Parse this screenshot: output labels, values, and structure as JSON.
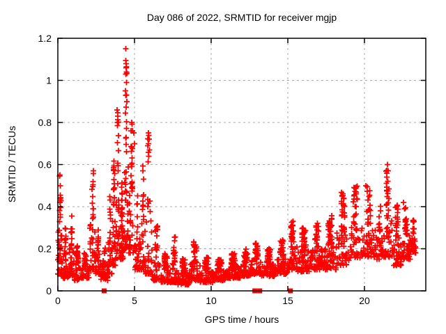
{
  "chart_data": {
    "type": "scatter",
    "title": "Day 086 of 2022, SRMTID for receiver mgjp",
    "xlabel": "GPS time / hours",
    "ylabel": "SRMTID / TECUs",
    "xlim": [
      0,
      24
    ],
    "ylim": [
      0,
      1.2
    ],
    "xticks": [
      0,
      5,
      10,
      15,
      20
    ],
    "xtick_labels": [
      "0",
      "5",
      "10",
      "15",
      "20"
    ],
    "yticks": [
      0,
      0.2,
      0.4,
      0.6,
      0.8,
      1,
      1.2
    ],
    "ytick_labels": [
      "0",
      "0.2",
      "0.4",
      "0.6",
      "0.8",
      "1",
      "1.2"
    ],
    "grid": {
      "show": true,
      "color": "#a8a8a8",
      "dash": "3 4",
      "x_at": [
        5,
        10,
        15,
        20
      ],
      "y_at": [
        0.2,
        0.4,
        0.6,
        0.8,
        1.0
      ]
    },
    "marker": {
      "type": "plus",
      "color": "#ff0000",
      "arm": 4,
      "stroke_width": 1.8
    },
    "border_color": "#000000",
    "background": "#ffffff",
    "seed": 42,
    "series": [
      {
        "name": "srmtid",
        "style": "plus",
        "envelope_bins": [
          [
            0.0,
            0.3,
            50,
            0.08,
            0.55,
            2.6
          ],
          [
            0.3,
            0.7,
            40,
            0.06,
            0.3,
            2.0
          ],
          [
            0.7,
            1.05,
            35,
            0.07,
            0.36,
            2.0
          ],
          [
            1.05,
            1.5,
            45,
            0.05,
            0.22,
            1.8
          ],
          [
            1.5,
            2.1,
            55,
            0.06,
            0.18,
            1.5
          ],
          [
            2.1,
            2.45,
            40,
            0.1,
            0.58,
            2.4
          ],
          [
            2.45,
            2.8,
            35,
            0.08,
            0.3,
            2.0
          ],
          [
            2.8,
            3.25,
            40,
            0.05,
            0.22,
            1.8
          ],
          [
            3.25,
            3.55,
            30,
            0.08,
            0.45,
            2.2
          ],
          [
            3.55,
            3.8,
            40,
            0.12,
            0.62,
            1.9
          ],
          [
            3.8,
            4.05,
            35,
            0.15,
            0.88,
            2.2
          ],
          [
            4.05,
            4.3,
            40,
            0.15,
            0.52,
            1.8
          ],
          [
            4.3,
            4.6,
            45,
            0.2,
            1.1,
            1.9
          ],
          [
            4.6,
            5.0,
            45,
            0.18,
            0.8,
            2.1
          ],
          [
            5.0,
            5.4,
            35,
            0.1,
            0.47,
            2.0
          ],
          [
            5.4,
            5.7,
            30,
            0.1,
            0.6,
            2.2
          ],
          [
            5.7,
            6.15,
            35,
            0.08,
            0.74,
            2.4
          ],
          [
            6.15,
            6.7,
            45,
            0.05,
            0.33,
            2.2
          ],
          [
            6.7,
            7.4,
            55,
            0.04,
            0.18,
            1.8
          ],
          [
            7.4,
            7.8,
            40,
            0.04,
            0.26,
            2.0
          ],
          [
            7.8,
            8.6,
            65,
            0.03,
            0.16,
            1.7
          ],
          [
            8.6,
            9.3,
            60,
            0.05,
            0.24,
            1.8
          ],
          [
            9.3,
            10.1,
            70,
            0.04,
            0.16,
            1.7
          ],
          [
            10.1,
            11.0,
            80,
            0.05,
            0.15,
            1.6
          ],
          [
            11.0,
            11.9,
            80,
            0.06,
            0.18,
            1.6
          ],
          [
            11.9,
            12.6,
            65,
            0.07,
            0.2,
            1.6
          ],
          [
            12.6,
            13.3,
            60,
            0.08,
            0.23,
            1.7
          ],
          [
            13.3,
            14.2,
            80,
            0.07,
            0.2,
            1.6
          ],
          [
            14.2,
            15.0,
            70,
            0.08,
            0.25,
            1.7
          ],
          [
            15.0,
            15.6,
            55,
            0.1,
            0.34,
            1.8
          ],
          [
            15.6,
            16.5,
            75,
            0.09,
            0.31,
            1.8
          ],
          [
            16.5,
            17.3,
            70,
            0.1,
            0.33,
            1.8
          ],
          [
            17.3,
            18.2,
            75,
            0.1,
            0.36,
            1.8
          ],
          [
            18.2,
            19.0,
            70,
            0.12,
            0.47,
            1.8
          ],
          [
            19.0,
            19.8,
            55,
            0.15,
            0.5,
            1.7
          ],
          [
            19.8,
            20.8,
            65,
            0.16,
            0.5,
            1.7
          ],
          [
            20.8,
            21.2,
            30,
            0.15,
            0.42,
            1.7
          ],
          [
            21.2,
            21.8,
            50,
            0.16,
            0.58,
            1.8
          ],
          [
            21.8,
            22.4,
            55,
            0.12,
            0.43,
            1.8
          ],
          [
            22.4,
            23.0,
            55,
            0.15,
            0.4,
            1.8
          ],
          [
            23.0,
            23.35,
            35,
            0.18,
            0.34,
            1.5
          ]
        ],
        "peak_points": [
          [
            0.13,
            0.55
          ],
          [
            0.15,
            0.5
          ],
          [
            2.32,
            0.57
          ],
          [
            3.87,
            0.86
          ],
          [
            3.9,
            0.83
          ],
          [
            4.43,
            1.15
          ],
          [
            4.45,
            1.08
          ],
          [
            4.46,
            1.06
          ],
          [
            4.44,
            1.03
          ],
          [
            4.47,
            0.99
          ],
          [
            4.42,
            0.95
          ],
          [
            4.48,
            0.93
          ],
          [
            4.5,
            0.9
          ],
          [
            4.95,
            0.75
          ],
          [
            5.0,
            0.7
          ],
          [
            5.55,
            0.57
          ],
          [
            5.92,
            0.75
          ],
          [
            5.95,
            0.72
          ],
          [
            5.9,
            0.7
          ],
          [
            5.97,
            0.67
          ],
          [
            5.93,
            0.64
          ],
          [
            8.85,
            0.22
          ],
          [
            15.35,
            0.33
          ],
          [
            18.55,
            0.45
          ],
          [
            19.45,
            0.47
          ],
          [
            20.1,
            0.5
          ],
          [
            21.5,
            0.6
          ],
          [
            21.55,
            0.57
          ],
          [
            21.45,
            0.54
          ],
          [
            22.55,
            0.42
          ]
        ]
      },
      {
        "name": "baseline-flags",
        "style": "filled_square",
        "color": "#ff0000",
        "size": 7,
        "points": [
          [
            3.02,
            0
          ],
          [
            12.85,
            0
          ],
          [
            13.17,
            0
          ],
          [
            15.17,
            0
          ]
        ]
      }
    ]
  }
}
